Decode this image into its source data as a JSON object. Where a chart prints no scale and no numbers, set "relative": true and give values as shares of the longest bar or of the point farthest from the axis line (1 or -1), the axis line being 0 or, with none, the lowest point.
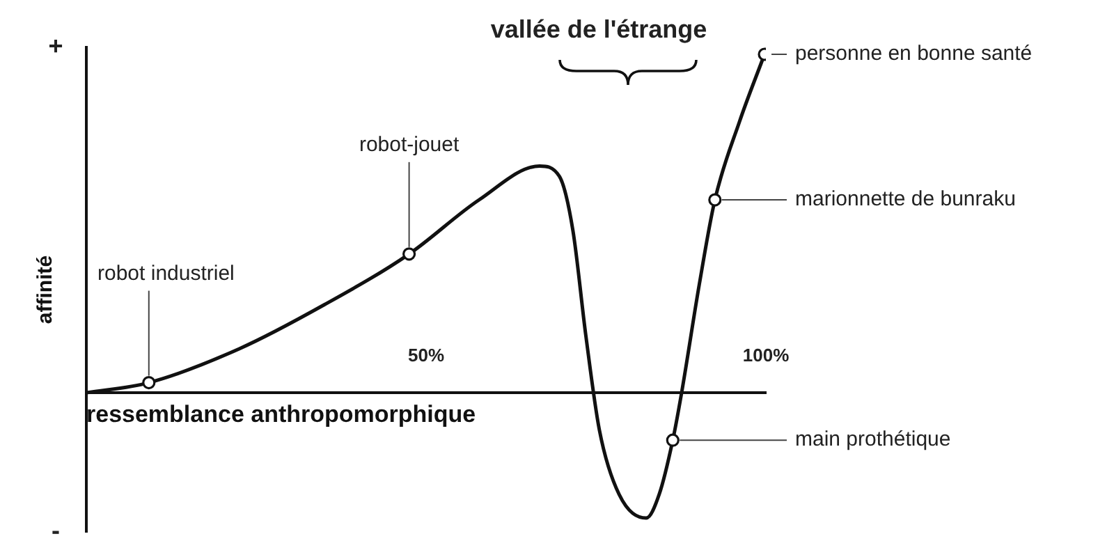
{
  "chart_data": {
    "type": "line",
    "relative": true,
    "xlabel": "ressemblance anthropomorphique",
    "ylabel": "affinité",
    "xlim": [
      0,
      100
    ],
    "xticks": [
      {
        "value": 50,
        "label": "50%"
      },
      {
        "value": 100,
        "label": "100%"
      }
    ],
    "grid": false,
    "legend": false,
    "series": [
      {
        "color": "#111111",
        "marker": "none",
        "x": [
          0,
          9.2,
          22.5,
          35,
          47.5,
          57.8,
          66.7,
          69.6,
          71.6,
          73.5,
          75.5,
          78.4,
          82.4,
          84.3,
          86.3,
          87.6,
          90.2,
          92.5,
          96.1,
          99.8
        ],
        "values": [
          0,
          0.03,
          0.13,
          0.26,
          0.41,
          0.57,
          0.67,
          0.64,
          0.48,
          0.17,
          -0.11,
          -0.3,
          -0.37,
          -0.3,
          -0.14,
          0,
          0.32,
          0.57,
          0.8,
          1
        ]
      },
      {
        "type": "scatter",
        "color": "#111111",
        "marker": "circle",
        "x": [
          9.2,
          47.5,
          86.3,
          92.5,
          99.8
        ],
        "values": [
          0.03,
          0.41,
          -0.14,
          0.57,
          1
        ]
      }
    ],
    "annotations": [
      "+",
      "vallée de l'étrange",
      "-",
      {
        "text": "robot industriel",
        "x": 9.2,
        "y": 0.03
      },
      {
        "text": "robot-jouet",
        "x": 47.5,
        "y": 0.41
      },
      {
        "text": "main prothétique",
        "x": 86.3,
        "y": -0.14
      },
      {
        "text": "marionnette de bunraku",
        "x": 92.5,
        "y": 0.57
      },
      {
        "text": "personne en bonne santé",
        "x": 99.8,
        "y": 1
      }
    ]
  }
}
